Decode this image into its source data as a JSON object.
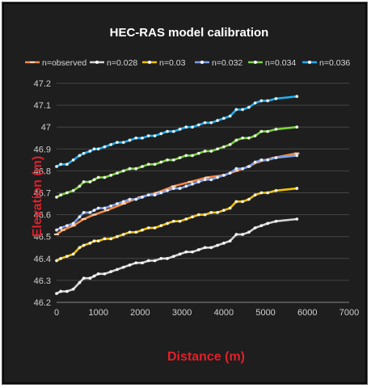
{
  "chart_data": {
    "type": "line",
    "title": "HEC-RAS model calibration",
    "xlabel": "Distance (m)",
    "ylabel": "Elevation (m)",
    "xlim": [
      0,
      7000
    ],
    "ylim": [
      46.2,
      47.2
    ],
    "x_ticks": [
      "0",
      "1000",
      "2000",
      "3000",
      "4000",
      "5000",
      "6000",
      "7000"
    ],
    "y_ticks": [
      "46.2",
      "46.3",
      "46.4",
      "46.5",
      "46.6",
      "46.7",
      "46.8",
      "46.9",
      "47",
      "47.1",
      "47.2"
    ],
    "grid": true,
    "legend_position": "top",
    "title_color": "#ffffff",
    "axis_label_color": "#e0202a",
    "series": [
      {
        "name": "n=observed",
        "color": "#f08a4b",
        "marker": "dash",
        "x": [
          0,
          150,
          400,
          650,
          900,
          1200,
          1600,
          2000,
          2400,
          2800,
          3200,
          3600,
          4000,
          4300,
          4600,
          4800,
          5200,
          5750
        ],
        "y": [
          46.51,
          46.53,
          46.55,
          46.58,
          46.6,
          46.62,
          46.65,
          46.68,
          46.7,
          46.73,
          46.75,
          46.77,
          46.78,
          46.8,
          46.82,
          46.84,
          46.86,
          46.88
        ]
      },
      {
        "name": "n=0.028",
        "color": "#d4d4d4",
        "marker": "circle",
        "x": [
          0,
          100,
          250,
          400,
          550,
          650,
          800,
          900,
          1000,
          1150,
          1300,
          1450,
          1600,
          1750,
          1900,
          2050,
          2200,
          2350,
          2500,
          2650,
          2800,
          2950,
          3100,
          3250,
          3400,
          3550,
          3700,
          3850,
          4000,
          4150,
          4300,
          4450,
          4600,
          4750,
          4900,
          5050,
          5250,
          5750
        ],
        "y": [
          46.24,
          46.25,
          46.25,
          46.26,
          46.29,
          46.31,
          46.31,
          46.32,
          46.33,
          46.33,
          46.34,
          46.35,
          46.36,
          46.37,
          46.38,
          46.38,
          46.39,
          46.39,
          46.4,
          46.4,
          46.41,
          46.42,
          46.43,
          46.43,
          46.44,
          46.45,
          46.45,
          46.46,
          46.47,
          46.48,
          46.51,
          46.51,
          46.52,
          46.54,
          46.55,
          46.56,
          46.57,
          46.58
        ]
      },
      {
        "name": "n=0.03",
        "color": "#f2c200",
        "marker": "circle",
        "x": [
          0,
          100,
          250,
          400,
          550,
          650,
          800,
          900,
          1000,
          1150,
          1300,
          1450,
          1600,
          1750,
          1900,
          2050,
          2200,
          2350,
          2500,
          2650,
          2800,
          2950,
          3100,
          3250,
          3400,
          3550,
          3700,
          3850,
          4000,
          4150,
          4300,
          4450,
          4600,
          4750,
          4900,
          5050,
          5250,
          5750
        ],
        "y": [
          46.39,
          46.4,
          46.41,
          46.42,
          46.45,
          46.46,
          46.47,
          46.48,
          46.48,
          46.49,
          46.49,
          46.5,
          46.51,
          46.52,
          46.52,
          46.53,
          46.54,
          46.54,
          46.55,
          46.56,
          46.57,
          46.57,
          46.58,
          46.59,
          46.6,
          46.6,
          46.61,
          46.61,
          46.62,
          46.63,
          46.66,
          46.66,
          46.67,
          46.69,
          46.7,
          46.7,
          46.71,
          46.72
        ]
      },
      {
        "name": "n=0.032",
        "color": "#7da0e8",
        "marker": "circle",
        "x": [
          0,
          100,
          250,
          400,
          550,
          650,
          800,
          900,
          1000,
          1150,
          1300,
          1450,
          1600,
          1750,
          1900,
          2050,
          2200,
          2350,
          2500,
          2650,
          2800,
          2950,
          3100,
          3250,
          3400,
          3550,
          3700,
          3850,
          4000,
          4150,
          4300,
          4450,
          4600,
          4750,
          4900,
          5050,
          5250,
          5750
        ],
        "y": [
          46.53,
          46.54,
          46.55,
          46.56,
          46.59,
          46.61,
          46.61,
          46.62,
          46.63,
          46.63,
          46.64,
          46.65,
          46.66,
          46.67,
          46.67,
          46.68,
          46.69,
          46.69,
          46.7,
          46.71,
          46.72,
          46.72,
          46.73,
          46.74,
          46.75,
          46.76,
          46.76,
          46.77,
          46.78,
          46.79,
          46.81,
          46.81,
          46.82,
          46.84,
          46.85,
          46.85,
          46.86,
          46.87
        ]
      },
      {
        "name": "n=0.034",
        "color": "#7bd13c",
        "marker": "circle",
        "x": [
          0,
          100,
          250,
          400,
          550,
          650,
          800,
          900,
          1000,
          1150,
          1300,
          1450,
          1600,
          1750,
          1900,
          2050,
          2200,
          2350,
          2500,
          2650,
          2800,
          2950,
          3100,
          3250,
          3400,
          3550,
          3700,
          3850,
          4000,
          4150,
          4300,
          4450,
          4600,
          4750,
          4900,
          5050,
          5250,
          5750
        ],
        "y": [
          46.68,
          46.69,
          46.7,
          46.71,
          46.73,
          46.75,
          46.75,
          46.76,
          46.77,
          46.77,
          46.78,
          46.79,
          46.8,
          46.81,
          46.81,
          46.82,
          46.83,
          46.83,
          46.84,
          46.85,
          46.85,
          46.86,
          46.87,
          46.87,
          46.88,
          46.89,
          46.89,
          46.9,
          46.91,
          46.92,
          46.94,
          46.95,
          46.95,
          46.96,
          46.98,
          46.98,
          46.99,
          47.0
        ]
      },
      {
        "name": "n=0.036",
        "color": "#1fb0f0",
        "marker": "circle",
        "x": [
          0,
          100,
          250,
          400,
          550,
          650,
          800,
          900,
          1000,
          1150,
          1300,
          1450,
          1600,
          1750,
          1900,
          2050,
          2200,
          2350,
          2500,
          2650,
          2800,
          2950,
          3100,
          3250,
          3400,
          3550,
          3700,
          3850,
          4000,
          4150,
          4300,
          4450,
          4600,
          4750,
          4900,
          5050,
          5250,
          5750
        ],
        "y": [
          46.82,
          46.83,
          46.83,
          46.85,
          46.87,
          46.88,
          46.89,
          46.9,
          46.9,
          46.91,
          46.92,
          46.93,
          46.93,
          46.94,
          46.95,
          46.95,
          46.96,
          46.96,
          46.97,
          46.98,
          46.98,
          46.99,
          47.0,
          47.0,
          47.01,
          47.02,
          47.02,
          47.03,
          47.04,
          47.05,
          47.08,
          47.08,
          47.09,
          47.11,
          47.12,
          47.12,
          47.13,
          47.14
        ]
      }
    ]
  }
}
